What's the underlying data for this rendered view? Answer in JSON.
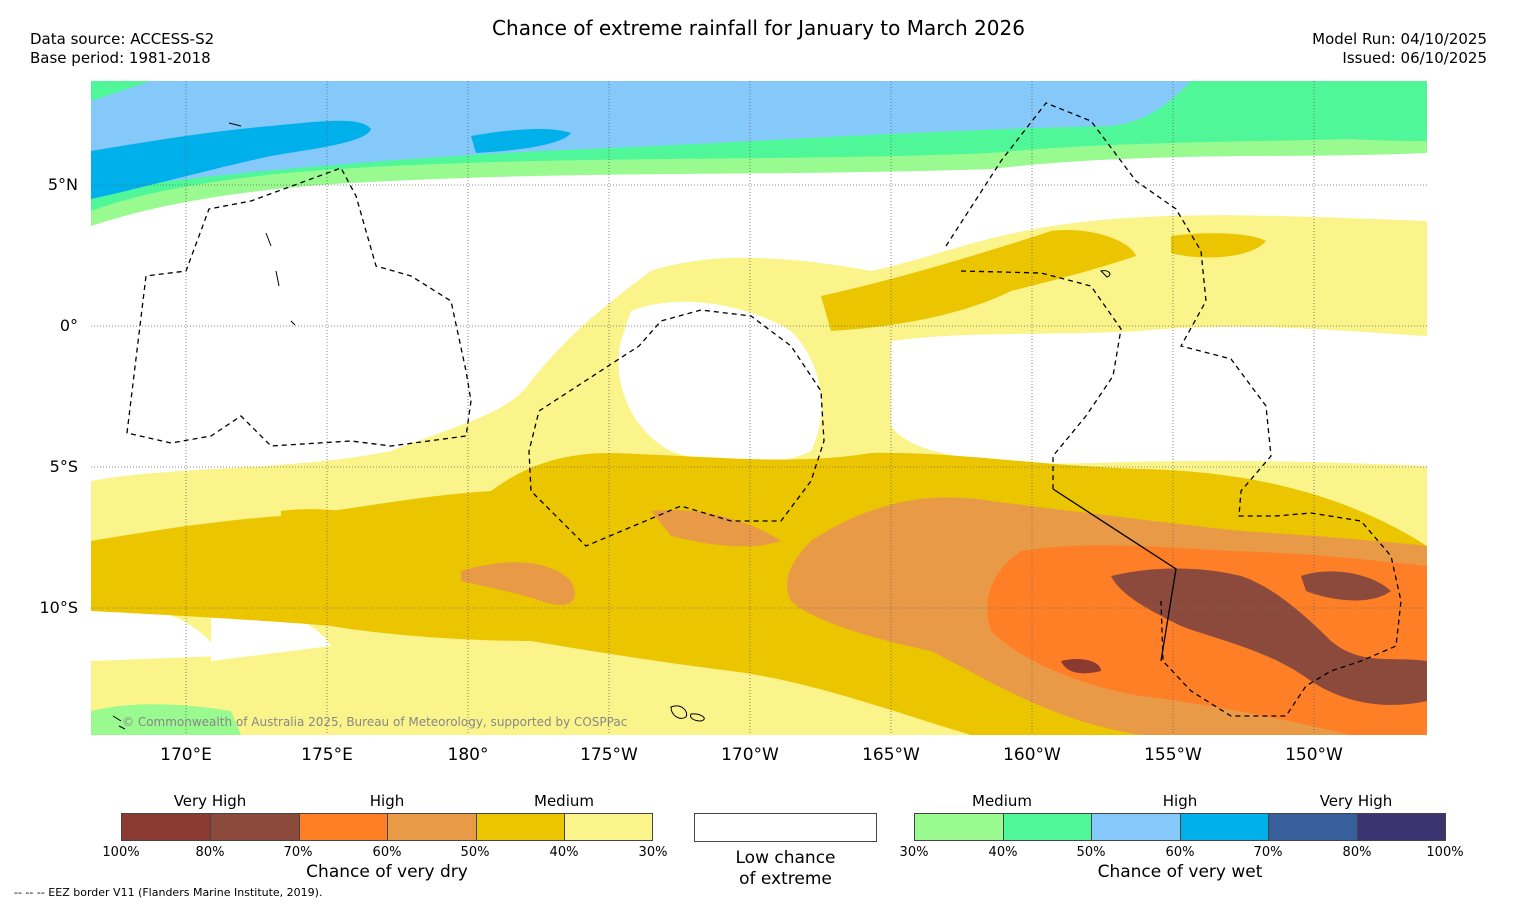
{
  "header": {
    "title": "Chance of extreme rainfall for January to March 2026",
    "data_source": "Data source: ACCESS-S2",
    "base_period": "Base period: 1981-2018",
    "model_run": "Model Run: 04/10/2025",
    "issued": "Issued: 06/10/2025"
  },
  "map": {
    "lat_labels": [
      "5°N",
      "0°",
      "5°S",
      "10°S"
    ],
    "lon_labels": [
      "170°E",
      "175°E",
      "180°",
      "175°W",
      "170°W",
      "165°W",
      "160°W",
      "155°W",
      "150°W"
    ],
    "copyright": "© Commonwealth of Australia 2025, Bureau of Meteorology, supported by COSPPac"
  },
  "legend_dry": {
    "categories": [
      "Very High",
      "High",
      "Medium"
    ],
    "colors": [
      "#8b3a32",
      "#8c4a3d",
      "#ff7f27",
      "#e89a47",
      "#ebc600",
      "#fbf48b"
    ],
    "percent_labels": [
      "100%",
      "80%",
      "70%",
      "60%",
      "50%",
      "40%",
      "30%"
    ],
    "caption": "Chance of very dry"
  },
  "legend_low": {
    "caption_line1": "Low chance",
    "caption_line2": "of extreme"
  },
  "legend_wet": {
    "categories": [
      "Medium",
      "High",
      "Very High"
    ],
    "colors": [
      "#98fa8f",
      "#4ff799",
      "#85c9fb",
      "#00b0eb",
      "#365f9b",
      "#3a3570"
    ],
    "percent_labels": [
      "30%",
      "40%",
      "50%",
      "60%",
      "70%",
      "80%",
      "100%"
    ],
    "caption": "Chance of very wet"
  },
  "footer": {
    "eez_note": "--  --  -- EEZ border V11 (Flanders Marine Institute, 2019)."
  }
}
